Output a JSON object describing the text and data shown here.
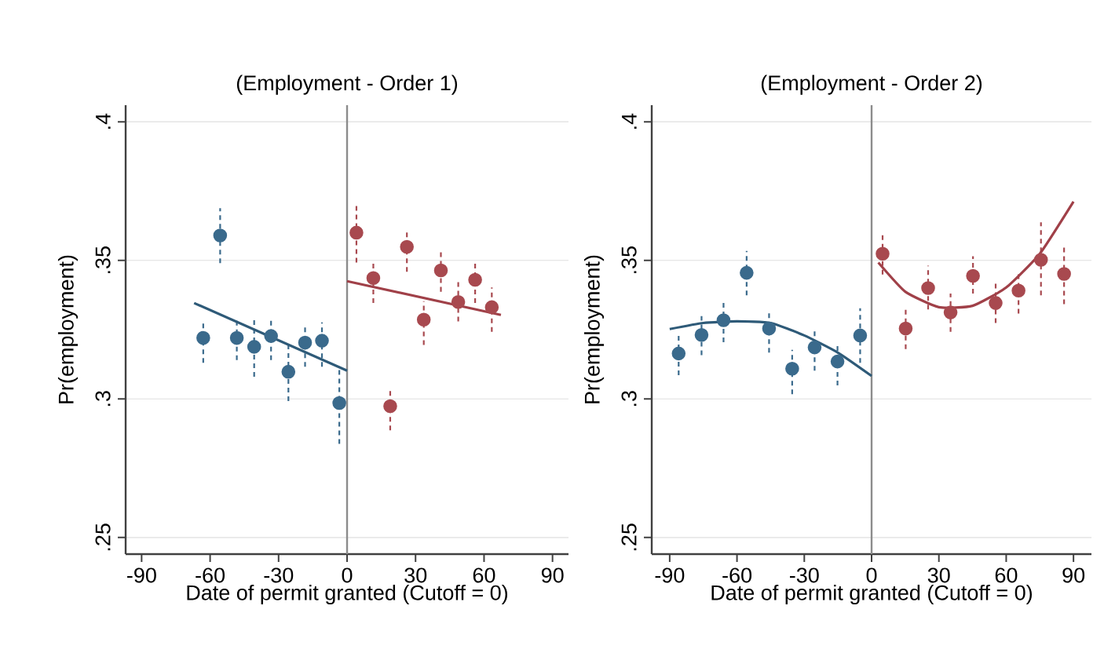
{
  "chart_data": [
    {
      "type": "scatter",
      "title": "(Employment - Order 1)",
      "xlabel": "Date of permit granted (Cutoff = 0)",
      "ylabel": "Pr(employment)",
      "xlim": [
        -97,
        97
      ],
      "ylim": [
        0.244,
        0.406
      ],
      "xticks": [
        -90,
        -60,
        -30,
        0,
        30,
        60,
        90
      ],
      "yticks": [
        {
          "value": 0.25,
          "label": ".25"
        },
        {
          "value": 0.3,
          "label": ".3"
        },
        {
          "value": 0.35,
          "label": ".35"
        },
        {
          "value": 0.4,
          "label": ".4"
        }
      ],
      "grid": "y",
      "marker": "circle",
      "ref_lines": [
        {
          "axis": "x",
          "value": 0,
          "color": "#8c8c8c"
        }
      ],
      "series": [
        {
          "type": "scatter",
          "color": "#3a6a8c",
          "x": [
            -63,
            -55.6,
            -48.3,
            -40.7,
            -33.3,
            -25.7,
            -18.4,
            -11,
            -3.4
          ],
          "values": [
            0.322,
            0.359,
            0.322,
            0.3188,
            0.3227,
            0.3098,
            0.3203,
            0.321,
            0.2985
          ],
          "errors": [
            [
              0.313,
              0.3276
            ],
            [
              0.349,
              0.3688
            ],
            [
              0.314,
              0.3286
            ],
            [
              0.308,
              0.329
            ],
            [
              0.314,
              0.329
            ],
            [
              0.2992,
              0.3195
            ],
            [
              0.3116,
              0.327
            ],
            [
              0.3116,
              0.3276
            ],
            [
              0.2838,
              0.3107
            ]
          ]
        },
        {
          "type": "scatter",
          "color": "#a8494f",
          "x": [
            4.1,
            11.5,
            18.9,
            26.2,
            33.6,
            41.1,
            48.7,
            56.1,
            63.4
          ],
          "values": [
            0.36,
            0.3436,
            0.2974,
            0.3549,
            0.3286,
            0.3464,
            0.335,
            0.343,
            0.3331
          ],
          "errors": [
            [
              0.3492,
              0.3703
            ],
            [
              0.3346,
              0.35
            ],
            [
              0.2887,
              0.3041
            ],
            [
              0.3459,
              0.3613
            ],
            [
              0.3195,
              0.3353
            ],
            [
              0.3387,
              0.3541
            ],
            [
              0.328,
              0.3421
            ],
            [
              0.3346,
              0.3496
            ],
            [
              0.3242,
              0.3402
            ]
          ]
        },
        {
          "type": "line",
          "marker": "none",
          "color": "#2e5a78",
          "x": [
            -67,
            0
          ],
          "values": [
            0.3346,
            0.3102
          ]
        },
        {
          "type": "line",
          "marker": "none",
          "color": "#a04048",
          "x": [
            0,
            67.4
          ],
          "values": [
            0.3425,
            0.3303
          ]
        }
      ]
    },
    {
      "type": "scatter",
      "title": "(Employment - Order 2)",
      "xlabel": "Date of permit granted (Cutoff = 0)",
      "ylabel": "Pr(employment)",
      "xlim": [
        -98,
        98
      ],
      "ylim": [
        0.244,
        0.406
      ],
      "xticks": [
        -90,
        -60,
        -30,
        0,
        30,
        60,
        90
      ],
      "yticks": [
        {
          "value": 0.25,
          "label": ".25"
        },
        {
          "value": 0.3,
          "label": ".3"
        },
        {
          "value": 0.35,
          "label": ".35"
        },
        {
          "value": 0.4,
          "label": ".4"
        }
      ],
      "grid": "y",
      "marker": "circle",
      "ref_lines": [
        {
          "axis": "x",
          "value": 0,
          "color": "#8c8c8c"
        }
      ],
      "series": [
        {
          "type": "scatter",
          "color": "#3a6a8c",
          "x": [
            -86,
            -75.8,
            -66,
            -55.7,
            -45.7,
            -35.4,
            -25.4,
            -15.2,
            -5.1
          ],
          "values": [
            0.3164,
            0.3231,
            0.3284,
            0.3455,
            0.3254,
            0.3109,
            0.3186,
            0.3135,
            0.3229
          ],
          "errors": [
            [
              0.3086,
              0.3237
            ],
            [
              0.3158,
              0.3299
            ],
            [
              0.3205,
              0.3355
            ],
            [
              0.3374,
              0.3534
            ],
            [
              0.3167,
              0.3323
            ],
            [
              0.3017,
              0.3177
            ],
            [
              0.3102,
              0.3256
            ],
            [
              0.3049,
              0.3205
            ],
            [
              0.313,
              0.3327
            ]
          ]
        },
        {
          "type": "scatter",
          "color": "#a8494f",
          "x": [
            4.9,
            15.2,
            25.2,
            35.2,
            45.2,
            55.3,
            65.5,
            75.5,
            85.8
          ],
          "values": [
            0.3524,
            0.3254,
            0.34,
            0.3312,
            0.3444,
            0.3346,
            0.3391,
            0.3502,
            0.3451
          ],
          "errors": [
            [
              0.3449,
              0.3594
            ],
            [
              0.318,
              0.3331
            ],
            [
              0.3323,
              0.3481
            ],
            [
              0.3242,
              0.338
            ],
            [
              0.338,
              0.3515
            ],
            [
              0.3274,
              0.3421
            ],
            [
              0.3308,
              0.3459
            ],
            [
              0.3374,
              0.3637
            ],
            [
              0.3342,
              0.3553
            ]
          ]
        },
        {
          "type": "line",
          "marker": "none",
          "color": "#2e5a78",
          "x": [
            -90,
            -75,
            -60,
            -45,
            -30,
            -15,
            0
          ],
          "values": [
            0.3252,
            0.3274,
            0.328,
            0.3274,
            0.3229,
            0.3167,
            0.3083
          ]
        },
        {
          "type": "line",
          "marker": "none",
          "color": "#a04048",
          "x": [
            3,
            15,
            30,
            45,
            60,
            75,
            90
          ],
          "values": [
            0.3492,
            0.3387,
            0.3331,
            0.3336,
            0.3402,
            0.3524,
            0.3712
          ]
        }
      ]
    }
  ]
}
